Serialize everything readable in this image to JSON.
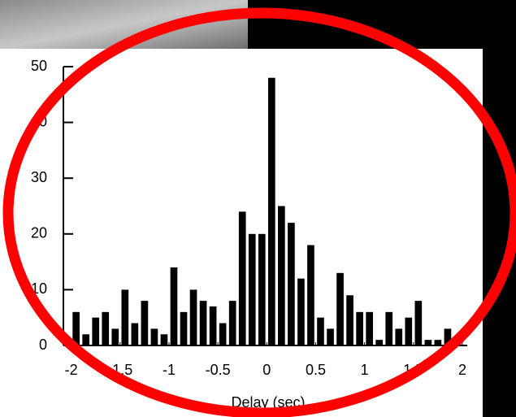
{
  "chart_data": {
    "type": "histogram",
    "x_label": "Delay (sec)",
    "bins": [
      -2,
      -1.9,
      -1.8,
      -1.7,
      -1.6,
      -1.5,
      -1.4,
      -1.3,
      -1.2,
      -1.1,
      -1,
      -0.9,
      -0.8,
      -0.7,
      -0.6,
      -0.5,
      -0.4,
      -0.3,
      -0.2,
      -0.1,
      0,
      0.1,
      0.2,
      0.3,
      0.4,
      0.5,
      0.6,
      0.7,
      0.8,
      0.9,
      1,
      1.1,
      1.2,
      1.3,
      1.4,
      1.5,
      1.6,
      1.7,
      1.8,
      1.9,
      2
    ],
    "values": [
      6,
      2,
      5,
      6,
      3,
      10,
      4,
      8,
      3,
      2,
      14,
      6,
      10,
      8,
      7,
      4,
      8,
      24,
      20,
      20,
      48,
      25,
      22,
      12,
      18,
      5,
      3,
      13,
      9,
      6,
      6,
      1,
      6,
      3,
      5,
      8,
      1,
      1,
      3,
      1
    ],
    "color": "#000000",
    "xlim": [
      -2.08,
      2.05
    ],
    "xticks": [
      -2,
      -1.5,
      -1,
      -0.5,
      0,
      0.5,
      1,
      1.5,
      2
    ],
    "ylim": [
      0,
      50
    ],
    "yticks": [
      0,
      10,
      20,
      30,
      40,
      50
    ]
  }
}
